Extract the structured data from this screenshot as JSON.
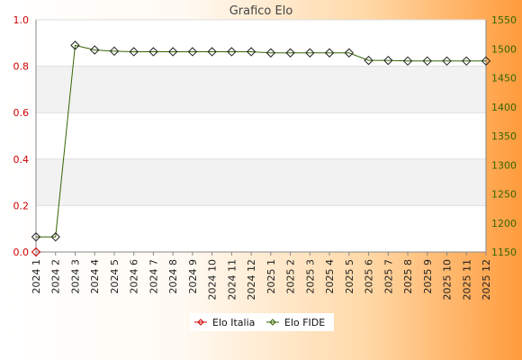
{
  "chart_data": {
    "type": "line",
    "title": "Grafico Elo",
    "x": [
      "2024 1",
      "2024 2",
      "2024 3",
      "2024 4",
      "2024 5",
      "2024 6",
      "2024 7",
      "2024 8",
      "2024 9",
      "2024 10",
      "2024 11",
      "2024 12",
      "2025 1",
      "2025 2",
      "2025 3",
      "2025 4",
      "2025 5",
      "2025 6",
      "2025 7",
      "2025 8",
      "2025 9",
      "2025 10",
      "2025 11",
      "2025 12"
    ],
    "y_left": {
      "ylim": [
        0,
        1.0
      ],
      "ticks": [
        "0.0",
        "0.2",
        "0.4",
        "0.6",
        "0.8",
        "1.0"
      ],
      "color": "#cc0000"
    },
    "y_right": {
      "ylim": [
        1150,
        1550
      ],
      "ticks": [
        "1150",
        "1200",
        "1250",
        "1300",
        "1350",
        "1400",
        "1450",
        "1500",
        "1550"
      ],
      "color": "#336600"
    },
    "series": [
      {
        "name": "Elo Italia",
        "axis": "left",
        "color": "#cc0000",
        "values": [
          0,
          null,
          null,
          null,
          null,
          null,
          null,
          null,
          null,
          null,
          null,
          null,
          null,
          null,
          null,
          null,
          null,
          null,
          null,
          null,
          null,
          null,
          null,
          null
        ]
      },
      {
        "name": "Elo FIDE",
        "axis": "right",
        "color": "#336600",
        "values": [
          1176,
          1176,
          1506,
          1498,
          1496,
          1495,
          1495,
          1495,
          1495,
          1495,
          1495,
          1495,
          1493,
          1493,
          1493,
          1493,
          1493,
          1480,
          1480,
          1479,
          1479,
          1479,
          1479,
          1479
        ]
      }
    ],
    "grid": "horizontal bands",
    "legend": "bottom-center"
  }
}
